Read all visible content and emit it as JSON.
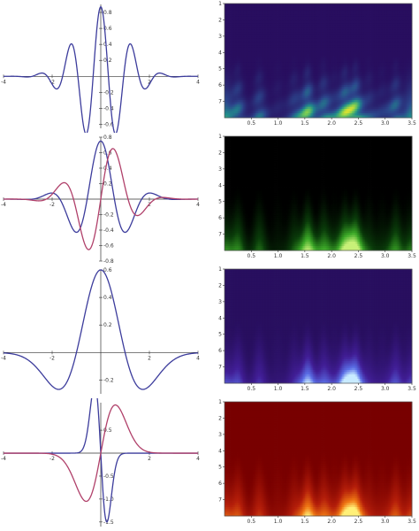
{
  "colors": {
    "blue": "#3c3c9c",
    "red": "#b0406a"
  },
  "chart_data": [
    {
      "type": "line",
      "wavelet": "morlet-real",
      "xlim": [
        -4,
        4
      ],
      "ylim": [
        -0.65,
        0.9
      ],
      "x_ticks": [
        "-4",
        "-2",
        "2",
        "4"
      ],
      "x_tick_vals": [
        -4,
        -2,
        2,
        4
      ],
      "y_ticks": [
        "0.8",
        "0.6",
        "0.4",
        "0.2",
        "-0.2",
        "-0.4",
        "-0.6"
      ],
      "y_tick_vals": [
        0.8,
        0.6,
        0.4,
        0.2,
        -0.2,
        -0.4,
        -0.6
      ],
      "series": [
        {
          "color_key": "blue",
          "formula": "gauss_cos",
          "amp": 0.87,
          "sigma": 1.0,
          "freq": 5.0,
          "phase": 0
        }
      ]
    },
    {
      "type": "line",
      "wavelet": "morlet-complex",
      "xlim": [
        -4,
        4
      ],
      "ylim": [
        -0.8,
        0.8
      ],
      "x_ticks": [
        "-4",
        "-2",
        "2",
        "4"
      ],
      "x_tick_vals": [
        -4,
        -2,
        2,
        4
      ],
      "y_ticks": [
        "0.8",
        "0.6",
        "0.4",
        "0.2",
        "-0.2",
        "-0.4",
        "-0.6",
        "-0.8"
      ],
      "y_tick_vals": [
        0.8,
        0.6,
        0.4,
        0.2,
        -0.2,
        -0.4,
        -0.6,
        -0.8
      ],
      "series": [
        {
          "color_key": "blue",
          "formula": "gauss_cos",
          "amp": 0.75,
          "sigma": 1.0,
          "freq": 2.8,
          "phase": 0
        },
        {
          "color_key": "red",
          "formula": "gauss_cos",
          "amp": 0.75,
          "sigma": 1.0,
          "freq": 2.8,
          "phase": -1.5708
        }
      ]
    },
    {
      "type": "line",
      "wavelet": "mexican-hat",
      "xlim": [
        -4,
        4
      ],
      "ylim": [
        -0.3,
        0.6
      ],
      "x_ticks": [
        "-4",
        "-2",
        "2",
        "4"
      ],
      "x_tick_vals": [
        -4,
        -2,
        2,
        4
      ],
      "y_ticks": [
        "0.6",
        "0.4",
        "0.2",
        "-0.2"
      ],
      "y_tick_vals": [
        0.6,
        0.4,
        0.2,
        -0.2
      ],
      "series": [
        {
          "color_key": "blue",
          "formula": "ricker",
          "amp": 0.6,
          "sigma": 1.0
        }
      ]
    },
    {
      "type": "line",
      "wavelet": "gaussian-derivative",
      "xlim": [
        -4,
        4
      ],
      "ylim": [
        -1.6,
        1.1
      ],
      "x_ticks": [
        "-4",
        "-2",
        "2",
        "4"
      ],
      "x_tick_vals": [
        -4,
        -2,
        2,
        4
      ],
      "y_ticks": [
        "0.5",
        "-0.5",
        "-1.0",
        "-1.5"
      ],
      "y_tick_vals": [
        0.5,
        -0.5,
        -1.0,
        -1.5
      ],
      "series": [
        {
          "color_key": "blue",
          "formula": "dog1",
          "amp": 1.5,
          "sigma": 0.25
        },
        {
          "color_key": "red",
          "formula": "dog1neg",
          "amp": 1.05,
          "sigma": 0.6
        }
      ]
    },
    {
      "type": "heatmap",
      "colormap": "viridis",
      "xlim": [
        0,
        3.5
      ],
      "ylim": [
        1,
        8
      ],
      "x_ticks": [
        "0.5",
        "1.0",
        "1.5",
        "2.0",
        "2.5",
        "3.0",
        "3.5"
      ],
      "x_tick_vals": [
        0.5,
        1.0,
        1.5,
        2.0,
        2.5,
        3.0,
        3.5
      ],
      "y_ticks": [
        "1",
        "2",
        "3",
        "4",
        "5",
        "6",
        "7"
      ],
      "y_tick_vals": [
        1,
        2,
        3,
        4,
        5,
        6,
        7
      ]
    },
    {
      "type": "heatmap",
      "colormap": "black-green",
      "xlim": [
        0,
        3.5
      ],
      "ylim": [
        1,
        8
      ],
      "x_ticks": [
        "0.5",
        "1.0",
        "1.5",
        "2.0",
        "2.5",
        "3.0",
        "3.5"
      ],
      "x_tick_vals": [
        0.5,
        1.0,
        1.5,
        2.0,
        2.5,
        3.0,
        3.5
      ],
      "y_ticks": [
        "1",
        "2",
        "3",
        "4",
        "5",
        "6",
        "7"
      ],
      "y_tick_vals": [
        1,
        2,
        3,
        4,
        5,
        6,
        7
      ]
    },
    {
      "type": "heatmap",
      "colormap": "purple-blue",
      "xlim": [
        0,
        3.5
      ],
      "ylim": [
        1,
        8
      ],
      "x_ticks": [
        "0.5",
        "1.0",
        "1.5",
        "2.0",
        "2.5",
        "3.0",
        "3.5"
      ],
      "x_tick_vals": [
        0.5,
        1.0,
        1.5,
        2.0,
        2.5,
        3.0,
        3.5
      ],
      "y_ticks": [
        "1",
        "2",
        "3",
        "4",
        "5",
        "6",
        "7"
      ],
      "y_tick_vals": [
        1,
        2,
        3,
        4,
        5,
        6,
        7
      ]
    },
    {
      "type": "heatmap",
      "colormap": "dark-red-yellow",
      "xlim": [
        0,
        3.5
      ],
      "ylim": [
        1,
        8
      ],
      "x_ticks": [
        "0.5",
        "1.0",
        "1.5",
        "2.0",
        "2.5",
        "3.0",
        "3.5"
      ],
      "x_tick_vals": [
        0.5,
        1.0,
        1.5,
        2.0,
        2.5,
        3.0,
        3.5
      ],
      "y_ticks": [
        "1",
        "2",
        "3",
        "4",
        "5",
        "6",
        "7"
      ],
      "y_tick_vals": [
        1,
        2,
        3,
        4,
        5,
        6,
        7
      ]
    }
  ]
}
